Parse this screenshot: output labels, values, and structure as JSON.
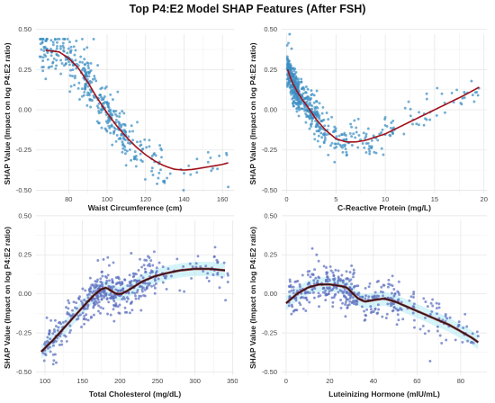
{
  "figure": {
    "title": "Top P4:E2 Model SHAP Features (After FSH)"
  },
  "chart_data": [
    {
      "type": "scatter",
      "xlabel": "Waist Circumference (cm)",
      "ylabel": "SHAP Value (Impact on log P4:E2 ratio)",
      "xlim": [
        63,
        166
      ],
      "ylim": [
        -0.52,
        0.47
      ],
      "xticks": [
        80,
        100,
        120,
        140,
        160
      ],
      "yticks": [
        -0.5,
        -0.25,
        0.0,
        0.25,
        0.5
      ],
      "xtick_labels": [
        "80",
        "100",
        "120",
        "140",
        "160"
      ],
      "ytick_labels": [
        "-0.50",
        "-0.25",
        "0.00",
        "0.25",
        "0.50"
      ],
      "grid": true,
      "point_color": "#3b8fc4",
      "curve_color": "#a0101a",
      "trend": {
        "x": [
          68,
          75,
          80,
          85,
          90,
          95,
          100,
          105,
          110,
          115,
          120,
          125,
          130,
          135,
          140,
          145,
          150,
          155,
          160,
          163
        ],
        "y": [
          0.37,
          0.36,
          0.32,
          0.26,
          0.17,
          0.07,
          -0.02,
          -0.1,
          -0.17,
          -0.23,
          -0.28,
          -0.32,
          -0.35,
          -0.37,
          -0.375,
          -0.37,
          -0.36,
          -0.35,
          -0.34,
          -0.33
        ]
      },
      "scatter_spec": {
        "seed": 11,
        "count": 420,
        "segments": [
          [
            65,
            90,
            0.3
          ],
          [
            88,
            110,
            0.42
          ],
          [
            108,
            130,
            0.12
          ],
          [
            128,
            163,
            0.04
          ]
        ],
        "noise": 0.07,
        "y_clamp": [
          -0.5,
          0.44
        ],
        "extra_points": [
          [
            68,
            0.43
          ],
          [
            72,
            0.42
          ],
          [
            162,
            -0.27
          ],
          [
            163,
            -0.48
          ],
          [
            126,
            -0.46
          ],
          [
            93,
            0.44
          ]
        ]
      }
    },
    {
      "type": "scatter",
      "xlabel": "C-Reactive Protein (mg/L)",
      "ylabel": "SHAP Value (Impact on log P4:E2 ratio)",
      "xlim": [
        -0.5,
        20.3
      ],
      "ylim": [
        -0.52,
        0.47
      ],
      "xticks": [
        0,
        5,
        10,
        15,
        20
      ],
      "yticks": [
        -0.5,
        -0.25,
        0.0,
        0.25,
        0.5
      ],
      "xtick_labels": [
        "0",
        "5",
        "10",
        "15",
        "20"
      ],
      "ytick_labels": [
        "-0.50",
        "-0.25",
        "0.00",
        "0.25",
        "0.50"
      ],
      "grid": true,
      "point_color": "#3b8fc4",
      "curve_color": "#a0101a",
      "trend": {
        "x": [
          0.1,
          0.5,
          1,
          1.5,
          2,
          3,
          4,
          5,
          6,
          7,
          8,
          9,
          10,
          11,
          12,
          13,
          14,
          15,
          16,
          17,
          18,
          19.5
        ],
        "y": [
          0.25,
          0.18,
          0.12,
          0.07,
          0.03,
          -0.06,
          -0.13,
          -0.18,
          -0.2,
          -0.2,
          -0.19,
          -0.17,
          -0.15,
          -0.12,
          -0.09,
          -0.06,
          -0.03,
          0.0,
          0.03,
          0.06,
          0.09,
          0.14
        ]
      },
      "scatter_spec": {
        "seed": 23,
        "count": 560,
        "segments": [
          [
            0.05,
            1.2,
            0.4
          ],
          [
            1.2,
            3.2,
            0.28
          ],
          [
            3.2,
            6,
            0.14
          ],
          [
            6,
            11,
            0.12
          ],
          [
            11,
            19.5,
            0.06
          ]
        ],
        "noise": 0.055,
        "y_clamp": [
          -0.45,
          0.47
        ],
        "extra_points": [
          [
            0.3,
            0.47
          ],
          [
            0.5,
            0.38
          ],
          [
            2.5,
            0.12
          ],
          [
            2.8,
            0.09
          ],
          [
            14.2,
            0.1
          ],
          [
            18,
            0.11
          ],
          [
            19.4,
            0.09
          ]
        ]
      }
    },
    {
      "type": "scatter",
      "xlabel": "Total Cholesterol (mg/dL)",
      "ylabel": "SHAP Value (Impact on log P4:E2 ratio)",
      "xlim": [
        88,
        352
      ],
      "ylim": [
        -0.52,
        0.47
      ],
      "xticks": [
        100,
        150,
        200,
        250,
        300,
        350
      ],
      "yticks": [
        -0.5,
        -0.25,
        0.0,
        0.25,
        0.5
      ],
      "xtick_labels": [
        "100",
        "150",
        "200",
        "250",
        "300",
        "350"
      ],
      "ytick_labels": [
        "-0.50",
        "-0.25",
        "0.00",
        "0.25",
        "0.50"
      ],
      "grid": true,
      "point_color": "#5b6fbf",
      "curve_color": "#1a1a1a",
      "curve_color_hi": "#a0101a",
      "band_color": "#9fe6f2",
      "trend": {
        "x": [
          95,
          110,
          125,
          140,
          155,
          165,
          175,
          182,
          188,
          195,
          202,
          210,
          220,
          230,
          245,
          260,
          280,
          300,
          320,
          340
        ],
        "y": [
          -0.37,
          -0.3,
          -0.22,
          -0.14,
          -0.06,
          -0.01,
          0.03,
          0.04,
          0.02,
          0.0,
          0.0,
          0.02,
          0.05,
          0.08,
          0.11,
          0.13,
          0.15,
          0.16,
          0.16,
          0.15
        ]
      },
      "scatter_spec": {
        "seed": 37,
        "count": 470,
        "segments": [
          [
            97,
            150,
            0.2
          ],
          [
            150,
            200,
            0.4
          ],
          [
            200,
            250,
            0.28
          ],
          [
            250,
            345,
            0.12
          ]
        ],
        "noise": 0.065,
        "y_clamp": [
          -0.45,
          0.3
        ],
        "extra_points": [
          [
            115,
            -0.44
          ],
          [
            103,
            -0.33
          ],
          [
            215,
            0.26
          ],
          [
            178,
            0.22
          ],
          [
            330,
            0.2
          ]
        ]
      }
    },
    {
      "type": "scatter",
      "xlabel": "Luteinizing Hormone (mIU/mL)",
      "ylabel": "SHAP Value (Impact on log P4:E2 ratio)",
      "xlim": [
        -2,
        92
      ],
      "ylim": [
        -0.52,
        0.47
      ],
      "xticks": [
        0,
        20,
        40,
        60,
        80
      ],
      "yticks": [
        -0.5,
        -0.25,
        0.0,
        0.25,
        0.5
      ],
      "xtick_labels": [
        "0",
        "20",
        "40",
        "60",
        "80"
      ],
      "ytick_labels": [
        "-0.50",
        "-0.25",
        "0.00",
        "0.25",
        "0.50"
      ],
      "grid": true,
      "point_color": "#5b6fbf",
      "curve_color": "#1a1a1a",
      "curve_color_hi": "#a0101a",
      "band_color": "#9fe6f2",
      "trend": {
        "x": [
          0,
          5,
          10,
          15,
          20,
          25,
          28,
          30,
          33,
          36,
          40,
          45,
          50,
          55,
          60,
          65,
          70,
          75,
          80,
          85,
          88
        ],
        "y": [
          -0.06,
          0.0,
          0.04,
          0.06,
          0.06,
          0.05,
          0.04,
          0.01,
          -0.03,
          -0.05,
          -0.04,
          -0.03,
          -0.05,
          -0.08,
          -0.11,
          -0.14,
          -0.17,
          -0.2,
          -0.24,
          -0.28,
          -0.31
        ]
      },
      "scatter_spec": {
        "seed": 53,
        "count": 400,
        "segments": [
          [
            1,
            18,
            0.22
          ],
          [
            18,
            32,
            0.34
          ],
          [
            32,
            52,
            0.3
          ],
          [
            52,
            88,
            0.14
          ]
        ],
        "noise": 0.065,
        "y_clamp": [
          -0.45,
          0.3
        ],
        "extra_points": [
          [
            12,
            0.29
          ],
          [
            14,
            0.25
          ],
          [
            30,
            0.18
          ],
          [
            66,
            -0.43
          ],
          [
            88,
            -0.27
          ]
        ]
      }
    }
  ]
}
